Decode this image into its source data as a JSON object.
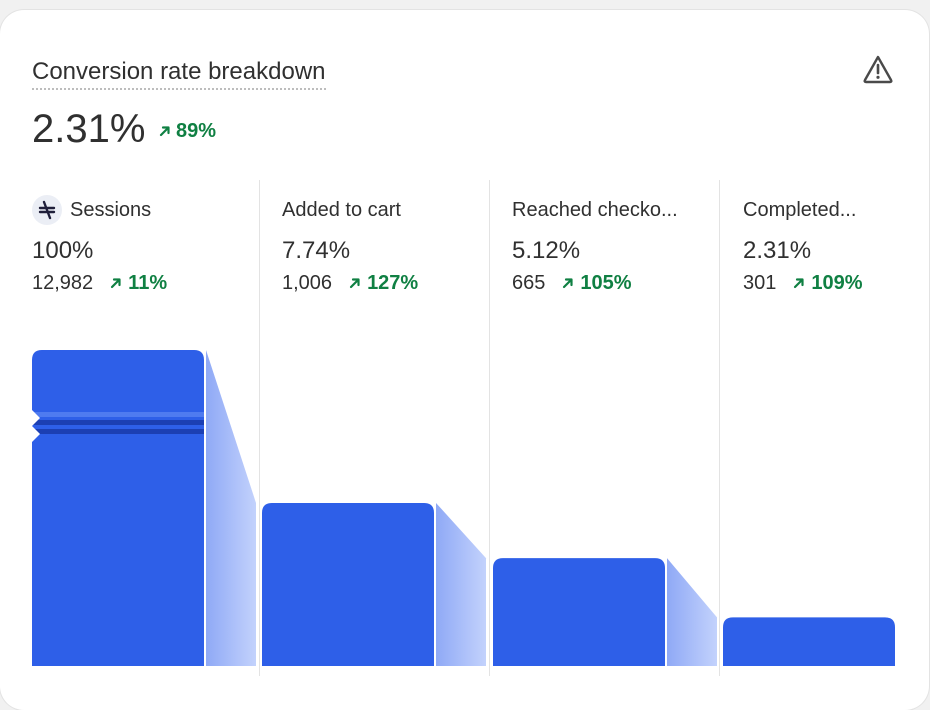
{
  "card": {
    "title": "Conversion rate breakdown",
    "value": "2.31%",
    "change": "89%",
    "warning_icon": "warning-triangle-icon"
  },
  "colors": {
    "bar": "#2e5fe8",
    "connector_dark": "#8fa9f6",
    "connector_light": "#c3d2fc",
    "positive": "#108043",
    "divider": "#e3e3e3"
  },
  "chart_data": {
    "type": "bar",
    "categories": [
      "Sessions",
      "Added to cart",
      "Reached checko...",
      "Completed..."
    ],
    "values": [
      100,
      7.74,
      5.12,
      2.31
    ],
    "counts": [
      "12,982",
      "1,006",
      "665",
      "301"
    ],
    "value_labels": [
      "100%",
      "7.74%",
      "5.12%",
      "2.31%"
    ],
    "changes": [
      "11%",
      "127%",
      "105%",
      "109%"
    ],
    "axis_break": true,
    "grid": false
  }
}
